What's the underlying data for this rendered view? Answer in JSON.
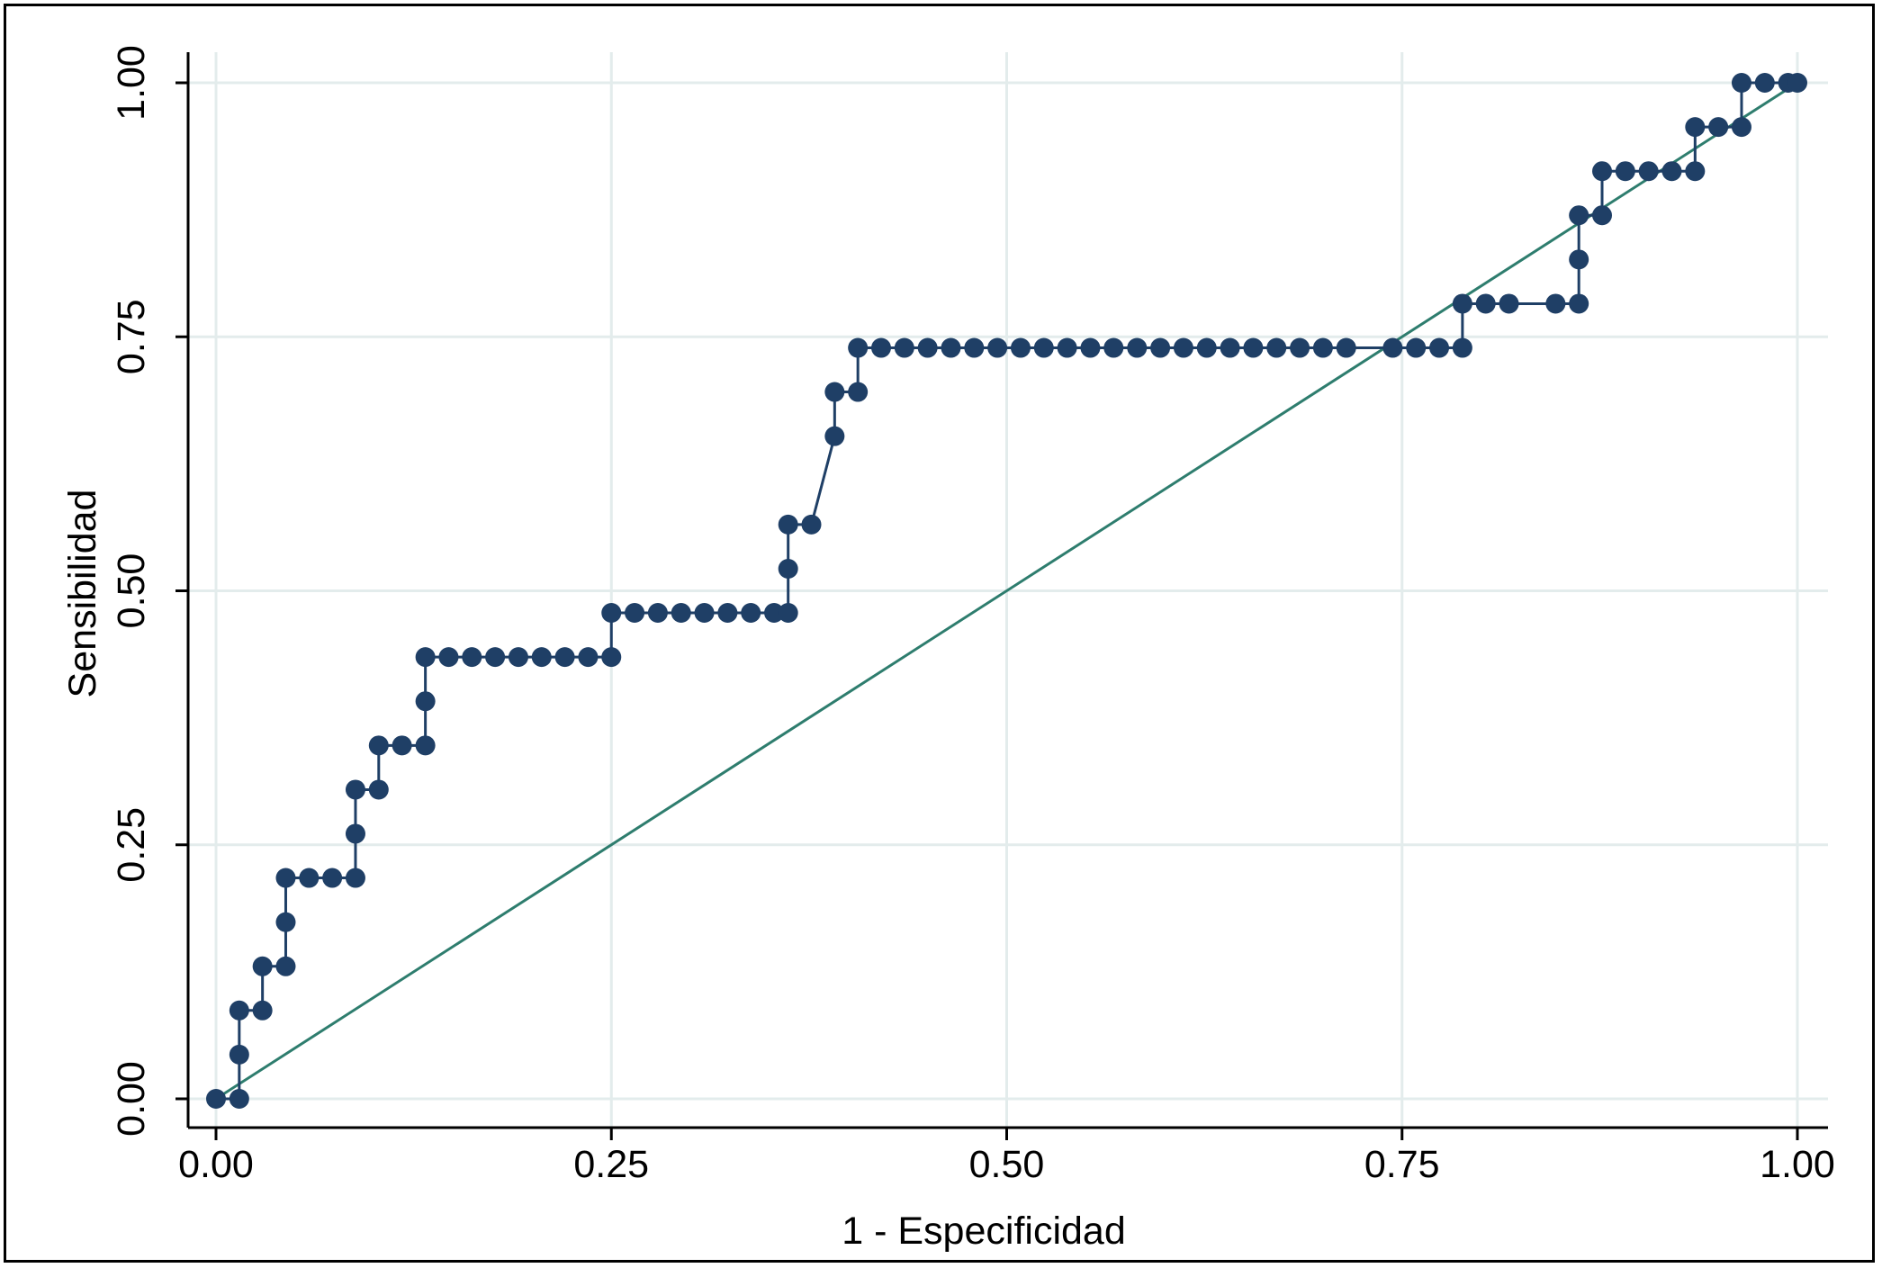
{
  "chart_data": {
    "type": "line",
    "xlabel": "1 - Especificidad",
    "ylabel": "Sensibilidad",
    "xlim": [
      0,
      1
    ],
    "ylim": [
      0,
      1
    ],
    "xticks": [
      "0.00",
      "0.25",
      "0.50",
      "0.75",
      "1.00"
    ],
    "yticks": [
      "0.00",
      "0.25",
      "0.50",
      "0.75",
      "1.00"
    ],
    "xtick_values": [
      0,
      0.25,
      0.5,
      0.75,
      1
    ],
    "ytick_values": [
      0,
      0.25,
      0.5,
      0.75,
      1
    ],
    "grid": true,
    "colors": {
      "roc": "#1f3f66",
      "reference": "#2e7d6e",
      "grid": "#e3ecec"
    },
    "series": [
      {
        "style": "line-markers",
        "x": [
          0,
          0.0147,
          0.0147,
          0.0147,
          0.0294,
          0.0294,
          0.0441,
          0.0441,
          0.0441,
          0.0588,
          0.0735,
          0.0882,
          0.0882,
          0.0882,
          0.1029,
          0.1029,
          0.1176,
          0.1324,
          0.1324,
          0.1324,
          0.1471,
          0.1618,
          0.1765,
          0.1912,
          0.2059,
          0.2206,
          0.2353,
          0.25,
          0.25,
          0.2647,
          0.2794,
          0.2941,
          0.3088,
          0.3235,
          0.3382,
          0.3529,
          0.3618,
          0.3618,
          0.3618,
          0.3765,
          0.3912,
          0.3912,
          0.4059,
          0.4059,
          0.4206,
          0.4353,
          0.45,
          0.4647,
          0.4794,
          0.4941,
          0.5088,
          0.5235,
          0.5382,
          0.5529,
          0.5676,
          0.5824,
          0.5971,
          0.6118,
          0.6265,
          0.6412,
          0.6559,
          0.6706,
          0.6853,
          0.7,
          0.7147,
          0.7441,
          0.7588,
          0.7735,
          0.7882,
          0.7882,
          0.8029,
          0.8176,
          0.8471,
          0.8618,
          0.8618,
          0.8618,
          0.8765,
          0.8765,
          0.8912,
          0.9059,
          0.9206,
          0.9353,
          0.9353,
          0.95,
          0.9647,
          0.9647,
          0.9794,
          0.9941,
          1
        ],
        "y": [
          0,
          0,
          0.0435,
          0.087,
          0.087,
          0.1304,
          0.1304,
          0.1739,
          0.2174,
          0.2174,
          0.2174,
          0.2174,
          0.2609,
          0.3043,
          0.3043,
          0.3478,
          0.3478,
          0.3478,
          0.3913,
          0.4348,
          0.4348,
          0.4348,
          0.4348,
          0.4348,
          0.4348,
          0.4348,
          0.4348,
          0.4348,
          0.4783,
          0.4783,
          0.4783,
          0.4783,
          0.4783,
          0.4783,
          0.4783,
          0.4783,
          0.4783,
          0.5217,
          0.5652,
          0.5652,
          0.6522,
          0.6957,
          0.6957,
          0.7391,
          0.7391,
          0.7391,
          0.7391,
          0.7391,
          0.7391,
          0.7391,
          0.7391,
          0.7391,
          0.7391,
          0.7391,
          0.7391,
          0.7391,
          0.7391,
          0.7391,
          0.7391,
          0.7391,
          0.7391,
          0.7391,
          0.7391,
          0.7391,
          0.7391,
          0.7391,
          0.7391,
          0.7391,
          0.7391,
          0.7826,
          0.7826,
          0.7826,
          0.7826,
          0.7826,
          0.8261,
          0.8696,
          0.8696,
          0.913,
          0.913,
          0.913,
          0.913,
          0.913,
          0.9565,
          0.9565,
          0.9565,
          1,
          1,
          1,
          1
        ]
      },
      {
        "style": "line",
        "x": [
          0,
          1
        ],
        "y": [
          0,
          1
        ]
      }
    ]
  }
}
